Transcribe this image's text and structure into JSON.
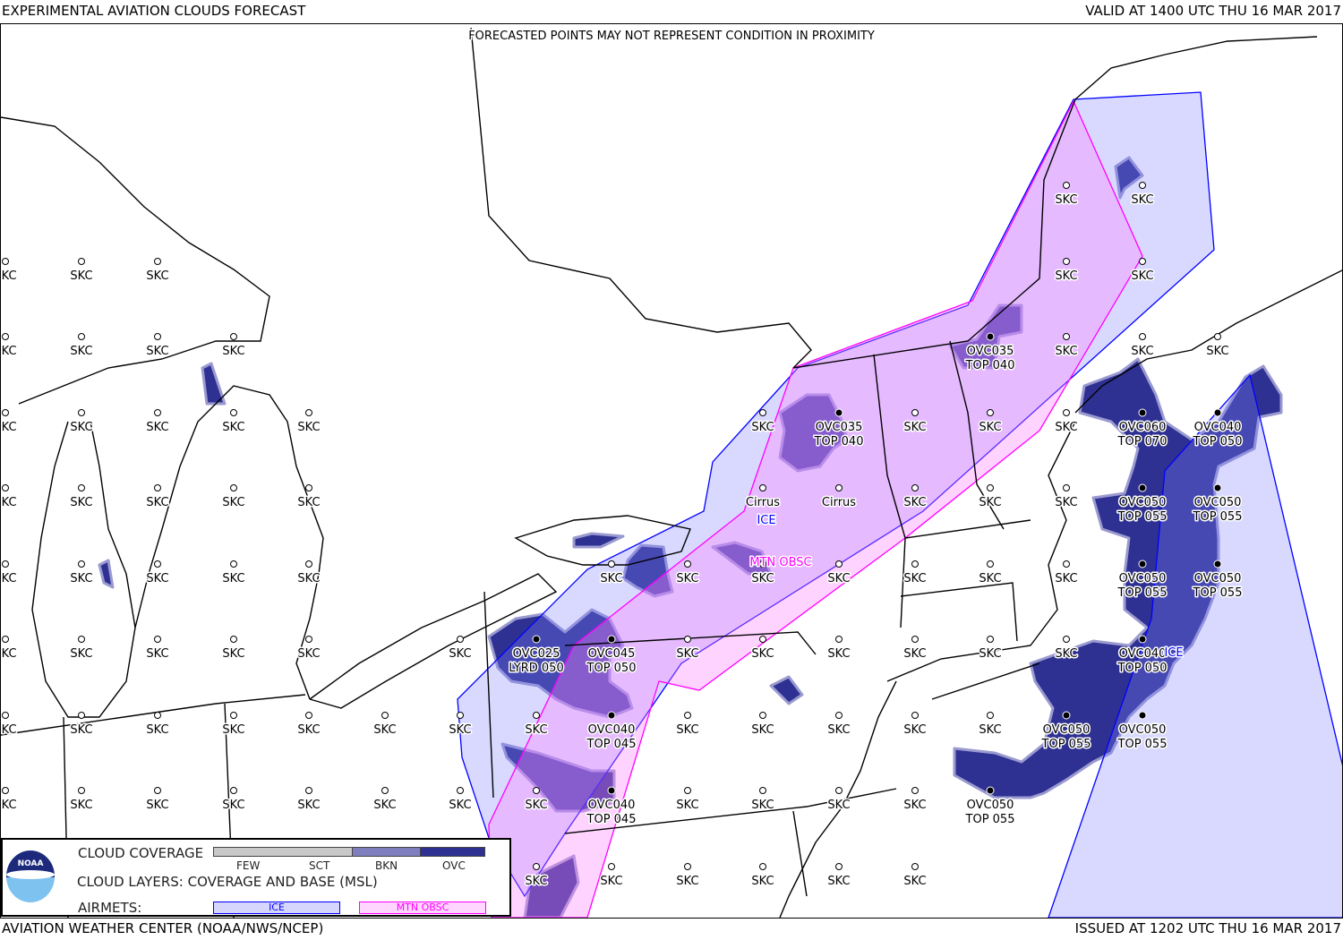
{
  "header": {
    "title": "EXPERIMENTAL AVIATION CLOUDS FORECAST",
    "valid": "VALID AT 1400 UTC THU 16 MAR 2017",
    "notice": "FORECASTED POINTS MAY NOT REPRESENT CONDITION IN PROXIMITY"
  },
  "footer": {
    "source": "AVIATION WEATHER CENTER (NOAA/NWS/NCEP)",
    "issued": "ISSUED AT 1202 UTC THU 16 MAR 2017"
  },
  "legend": {
    "logo_text": "NOAA",
    "coverage_title": "CLOUD COVERAGE",
    "coverage_levels": [
      "FEW",
      "SCT",
      "BKN",
      "OVC"
    ],
    "coverage_colors": {
      "few_sct": "#c8c8c8",
      "bkn": "#7f7fc0",
      "ovc": "#2e3192"
    },
    "layers_title": "CLOUD LAYERS: COVERAGE AND BASE (MSL)",
    "airmets_title": "AIRMETS:",
    "airmet_ice": "ICE",
    "airmet_mtn": "MTN OBSC",
    "airmet_colors": {
      "ice": "#0000ff",
      "mtn_obsc": "#ff00ff"
    }
  },
  "map_labels": {
    "ice": "ICE",
    "mtn_obsc": "MTN OBSC",
    "ice_east": "ICE"
  },
  "stations": [
    {
      "l1": "SKC"
    },
    {
      "l1": "SKC"
    },
    {
      "l1": "SKC"
    },
    {
      "l1": "SKC"
    },
    {
      "l1": "SKC"
    },
    {
      "l1": "SKC"
    },
    {
      "l1": "SKC"
    },
    {
      "l1": "SKC"
    },
    {
      "l1": "SKC"
    },
    {
      "l1": "SKC"
    },
    {
      "l1": "SKC"
    },
    {
      "l1": "OVC035",
      "l2": "TOP 040",
      "filled": true
    },
    {
      "l1": "SKC"
    },
    {
      "l1": "SKC"
    },
    {
      "l1": "SKC"
    },
    {
      "l1": "SKC"
    },
    {
      "l1": "SKC"
    },
    {
      "l1": "SKC"
    },
    {
      "l1": "SKC"
    },
    {
      "l1": "SKC"
    },
    {
      "l1": "SKC"
    },
    {
      "l1": "OVC035",
      "l2": "TOP 040",
      "filled": true
    },
    {
      "l1": "SKC"
    },
    {
      "l1": "SKC"
    },
    {
      "l1": "SKC"
    },
    {
      "l1": "OVC060",
      "l2": "TOP 070",
      "filled": true
    },
    {
      "l1": "OVC040",
      "l2": "TOP 050",
      "filled": true
    },
    {
      "l1": "SKC"
    },
    {
      "l1": "SKC"
    },
    {
      "l1": "SKC"
    },
    {
      "l1": "SKC"
    },
    {
      "l1": "SKC"
    },
    {
      "l1": "Cirrus"
    },
    {
      "l1": "Cirrus"
    },
    {
      "l1": "SKC"
    },
    {
      "l1": "SKC"
    },
    {
      "l1": "SKC"
    },
    {
      "l1": "OVC050",
      "l2": "TOP 055",
      "filled": true
    },
    {
      "l1": "OVC050",
      "l2": "TOP 055",
      "filled": true
    },
    {
      "l1": "SKC"
    },
    {
      "l1": "SKC"
    },
    {
      "l1": "SKC"
    },
    {
      "l1": "SKC"
    },
    {
      "l1": "SKC"
    },
    {
      "l1": "SKC"
    },
    {
      "l1": "SKC"
    },
    {
      "l1": "SKC"
    },
    {
      "l1": "SKC"
    },
    {
      "l1": "SKC"
    },
    {
      "l1": "SKC"
    },
    {
      "l1": "SKC"
    },
    {
      "l1": "OVC050",
      "l2": "TOP 055",
      "filled": true
    },
    {
      "l1": "OVC050",
      "l2": "TOP 055",
      "filled": true
    },
    {
      "l1": "SKC"
    },
    {
      "l1": "SKC"
    },
    {
      "l1": "SKC"
    },
    {
      "l1": "SKC"
    },
    {
      "l1": "SKC"
    },
    {
      "l1": "SKC"
    },
    {
      "l1": "OVC025",
      "l2": "LYRD 050",
      "filled": true
    },
    {
      "l1": "OVC045",
      "l2": "TOP 050",
      "filled": true
    },
    {
      "l1": "SKC"
    },
    {
      "l1": "SKC"
    },
    {
      "l1": "SKC"
    },
    {
      "l1": "SKC"
    },
    {
      "l1": "SKC"
    },
    {
      "l1": "SKC"
    },
    {
      "l1": "OVC040",
      "l2": "TOP 050",
      "filled": true
    },
    {
      "l1": "SKC"
    },
    {
      "l1": "SKC"
    },
    {
      "l1": "SKC"
    },
    {
      "l1": "SKC"
    },
    {
      "l1": "SKC"
    },
    {
      "l1": "SKC"
    },
    {
      "l1": "SKC"
    },
    {
      "l1": "SKC"
    },
    {
      "l1": "OVC040",
      "l2": "TOP 045",
      "filled": true
    },
    {
      "l1": "SKC"
    },
    {
      "l1": "SKC"
    },
    {
      "l1": "SKC"
    },
    {
      "l1": "SKC"
    },
    {
      "l1": "SKC"
    },
    {
      "l1": "OVC050",
      "l2": "TOP 055",
      "filled": true
    },
    {
      "l1": "OVC050",
      "l2": "TOP 055",
      "filled": true
    },
    {
      "l1": "SKC"
    },
    {
      "l1": "SKC"
    },
    {
      "l1": "SKC"
    },
    {
      "l1": "SKC"
    },
    {
      "l1": "SKC"
    },
    {
      "l1": "SKC"
    },
    {
      "l1": "SKC"
    },
    {
      "l1": "SKC"
    },
    {
      "l1": "OVC040",
      "l2": "TOP 045",
      "filled": true
    },
    {
      "l1": "SKC"
    },
    {
      "l1": "SKC"
    },
    {
      "l1": "SKC"
    },
    {
      "l1": "SKC"
    },
    {
      "l1": "OVC050",
      "l2": "TOP 055",
      "filled": true
    },
    {
      "l1": "SKC"
    },
    {
      "l1": "SKC"
    },
    {
      "l1": "SKC"
    },
    {
      "l1": "SKC"
    },
    {
      "l1": "SKC"
    },
    {
      "l1": "SKC"
    }
  ]
}
